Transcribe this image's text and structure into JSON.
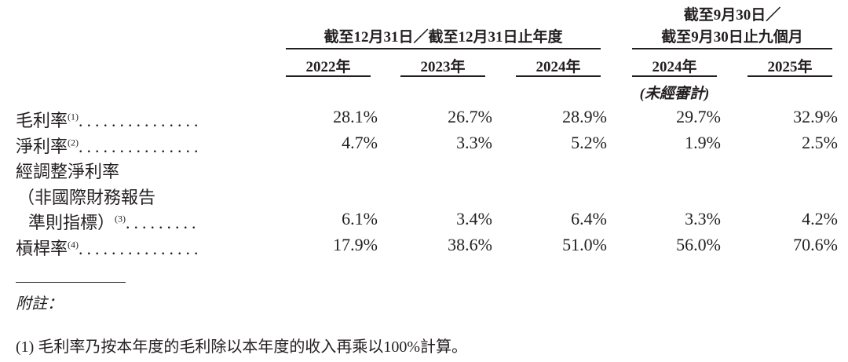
{
  "header": {
    "group1": "截至12月31日／截至12月31日止年度",
    "group2_line1": "截至9月30日／",
    "group2_line2": "截至9月30日止九個月",
    "years": [
      "2022年",
      "2023年",
      "2024年",
      "2024年",
      "2025年"
    ],
    "unaudited": "(未經審計)"
  },
  "rows": [
    {
      "label": "毛利率",
      "note": "(1)",
      "dots": "...............",
      "values": [
        "28.1%",
        "26.7%",
        "28.9%",
        "29.7%",
        "32.9%"
      ]
    },
    {
      "label": "淨利率",
      "note": "(2)",
      "dots": "...............",
      "values": [
        "4.7%",
        "3.3%",
        "5.2%",
        "1.9%",
        "2.5%"
      ]
    },
    {
      "label": "經調整淨利率",
      "label2": "（非國際財務報告",
      "label3": "準則指標）",
      "note": "(3)",
      "dots": ".........",
      "values": [
        "6.1%",
        "3.4%",
        "6.4%",
        "3.3%",
        "4.2%"
      ]
    },
    {
      "label": "槓桿率",
      "note": "(4)",
      "dots": "...............",
      "values": [
        "17.9%",
        "38.6%",
        "51.0%",
        "56.0%",
        "70.6%"
      ]
    }
  ],
  "notes": {
    "heading": "附註：",
    "note1": "(1) 毛利率乃按本年度的毛利除以本年度的收入再乘以100%計算。"
  }
}
